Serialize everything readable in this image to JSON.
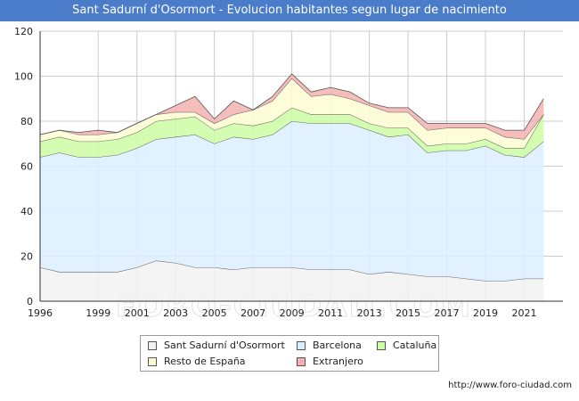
{
  "title": "Sant Sadurní d'Osormort - Evolucion habitantes segun lugar de nacimiento",
  "watermark": "FORO-CIUDAD.COM",
  "source": "http://www.foro-ciudad.com",
  "colors": {
    "title_bar": "#4a7cc9",
    "Sant Sadurní d'Osormort": "#f2f2f2",
    "Barcelona": "#ddeeff",
    "Cataluña": "#cdfda5",
    "Resto de España": "#fdfdd4",
    "Extranjero": "#f5b1b1"
  },
  "chart_data": {
    "type": "area",
    "stacked": true,
    "title": "Sant Sadurní d'Osormort - Evolucion habitantes segun lugar de nacimiento",
    "xlabel": "",
    "ylabel": "",
    "xlim": [
      1996,
      2023
    ],
    "ylim": [
      0,
      120
    ],
    "yticks": [
      0,
      20,
      40,
      60,
      80,
      100,
      120
    ],
    "xticks": [
      1996,
      1999,
      2001,
      2003,
      2005,
      2007,
      2009,
      2011,
      2013,
      2015,
      2017,
      2019,
      2021
    ],
    "grid": true,
    "legend_position": "bottom",
    "x": [
      1996,
      1997,
      1998,
      1999,
      2000,
      2001,
      2002,
      2003,
      2004,
      2005,
      2006,
      2007,
      2008,
      2009,
      2010,
      2011,
      2012,
      2013,
      2014,
      2015,
      2016,
      2017,
      2018,
      2019,
      2020,
      2021,
      2022
    ],
    "series": [
      {
        "name": "Sant Sadurní d'Osormort",
        "values": [
          15,
          13,
          13,
          13,
          13,
          15,
          18,
          17,
          15,
          15,
          14,
          15,
          15,
          15,
          14,
          14,
          14,
          12,
          13,
          12,
          11,
          11,
          10,
          9,
          9,
          10,
          10
        ]
      },
      {
        "name": "Barcelona",
        "values": [
          49,
          53,
          51,
          51,
          52,
          53,
          54,
          56,
          59,
          55,
          59,
          57,
          59,
          65,
          65,
          65,
          65,
          64,
          60,
          62,
          55,
          56,
          57,
          60,
          56,
          54,
          61
        ]
      },
      {
        "name": "Cataluña",
        "values": [
          7,
          7,
          7,
          7,
          7,
          7,
          8,
          8,
          8,
          6,
          6,
          6,
          6,
          6,
          4,
          4,
          4,
          3,
          4,
          3,
          3,
          3,
          3,
          3,
          3,
          4,
          12
        ]
      },
      {
        "name": "Resto de España",
        "values": [
          3,
          3,
          3,
          3,
          3,
          4,
          3,
          3,
          2,
          3,
          4,
          7,
          9,
          13,
          8,
          9,
          7,
          8,
          7,
          7,
          7,
          7,
          7,
          5,
          5,
          4,
          0
        ]
      },
      {
        "name": "Extranjero",
        "values": [
          0,
          0,
          1,
          2,
          0,
          0,
          0,
          3,
          7,
          2,
          6,
          0,
          2,
          2,
          2,
          3,
          3,
          1,
          2,
          2,
          3,
          2,
          2,
          2,
          3,
          4,
          7
        ]
      }
    ]
  }
}
